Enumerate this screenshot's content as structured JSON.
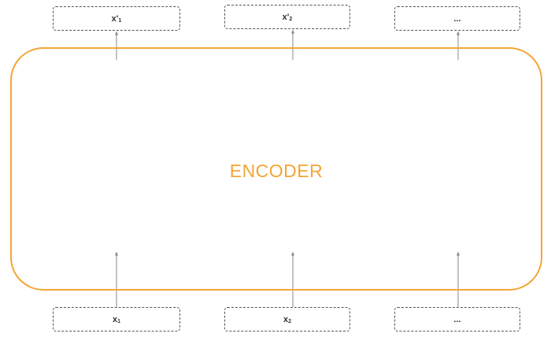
{
  "encoder": {
    "label": "ENCODER",
    "color": "#f4a535"
  },
  "outputs": [
    {
      "main": "x'",
      "sub": "1"
    },
    {
      "main": "x'",
      "sub": "2"
    },
    {
      "main": "...",
      "sub": ""
    }
  ],
  "inputs": [
    {
      "main": "x",
      "sub": "1"
    },
    {
      "main": "x",
      "sub": "2"
    },
    {
      "main": "...",
      "sub": ""
    }
  ]
}
